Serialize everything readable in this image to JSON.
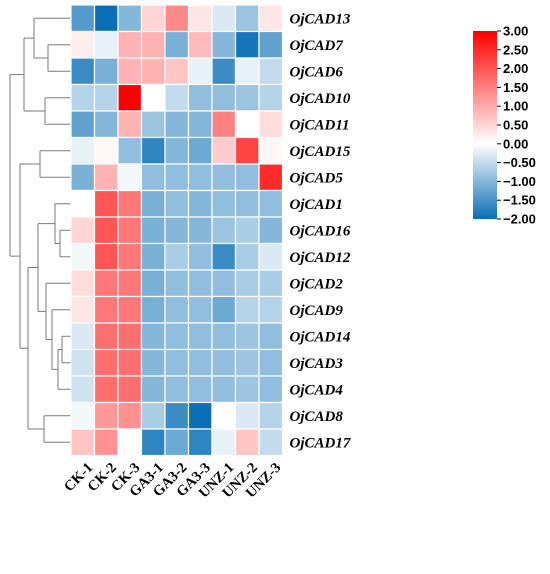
{
  "chart_data": {
    "type": "heatmap",
    "title": "",
    "xlabel": "",
    "ylabel": "",
    "columns": [
      "CK-1",
      "CK-2",
      "CK-3",
      "GA3-1",
      "GA3-2",
      "GA3-3",
      "UNZ-1",
      "UNZ-2",
      "UNZ-3"
    ],
    "rows": [
      "OjCAD13",
      "OjCAD7",
      "OjCAD6",
      "OjCAD10",
      "OjCAD11",
      "OjCAD15",
      "OjCAD5",
      "OjCAD1",
      "OjCAD16",
      "OjCAD12",
      "OjCAD2",
      "OjCAD9",
      "OjCAD14",
      "OjCAD3",
      "OjCAD4",
      "OjCAD8",
      "OjCAD17"
    ],
    "values": [
      [
        -1.4,
        -2.0,
        -1.0,
        0.5,
        1.4,
        0.3,
        -0.3,
        -0.8,
        0.3
      ],
      [
        0.2,
        -0.2,
        0.9,
        0.9,
        -1.1,
        0.8,
        -1.0,
        -1.9,
        -1.3
      ],
      [
        -1.6,
        -1.1,
        0.9,
        0.9,
        0.7,
        -0.2,
        -1.6,
        -0.2,
        -0.5
      ],
      [
        -0.6,
        -0.6,
        3.0,
        0.0,
        -0.5,
        -0.9,
        -0.9,
        -0.8,
        -0.6
      ],
      [
        -1.3,
        -1.0,
        0.9,
        -0.8,
        -1.0,
        -1.0,
        1.5,
        0.0,
        0.4
      ],
      [
        -0.2,
        0.1,
        -0.9,
        -1.7,
        -1.0,
        -1.2,
        0.6,
        2.2,
        0.1
      ],
      [
        -1.1,
        0.9,
        -0.1,
        -0.9,
        -0.9,
        -0.9,
        -0.9,
        -0.9,
        2.5
      ],
      [
        0.0,
        2.0,
        1.6,
        -1.1,
        -0.9,
        -1.0,
        -0.9,
        -0.9,
        -0.9
      ],
      [
        0.5,
        2.0,
        1.6,
        -1.1,
        -1.0,
        -1.0,
        -0.8,
        -0.7,
        -1.0
      ],
      [
        -0.1,
        2.0,
        1.6,
        -1.1,
        -0.7,
        -0.9,
        -1.6,
        -0.7,
        -0.3
      ],
      [
        0.4,
        1.6,
        1.6,
        -1.1,
        -0.9,
        -0.9,
        -0.9,
        -0.7,
        -0.7
      ],
      [
        0.3,
        1.6,
        1.6,
        -1.1,
        -0.9,
        -0.9,
        -1.2,
        -0.6,
        -0.6
      ],
      [
        -0.3,
        1.7,
        1.7,
        -1.0,
        -0.9,
        -0.9,
        -0.9,
        -0.8,
        -0.9
      ],
      [
        -0.4,
        1.7,
        1.7,
        -1.0,
        -0.9,
        -0.9,
        -0.9,
        -0.8,
        -0.9
      ],
      [
        -0.4,
        1.7,
        1.7,
        -1.0,
        -0.9,
        -0.9,
        -0.9,
        -0.8,
        -0.9
      ],
      [
        -0.1,
        1.2,
        1.3,
        -0.7,
        -1.6,
        -2.0,
        0.0,
        -0.3,
        -0.6
      ],
      [
        0.7,
        1.3,
        0.0,
        -1.7,
        -1.2,
        -1.7,
        -0.2,
        0.7,
        -0.5
      ]
    ],
    "colorbar": {
      "min": -2.0,
      "max": 3.0,
      "mid": 0.0,
      "colors": {
        "low": "#0a6fb5",
        "mid": "#ffffff",
        "high": "#ff0000"
      },
      "ticks": [
        "3.00",
        "2.50",
        "2.00",
        "1.50",
        "1.00",
        "0.50",
        "0.00",
        "−0.50",
        "−1.00",
        "−1.50",
        "−2.00"
      ]
    },
    "dendrogram": "row clustering tree on left side",
    "grid": true
  }
}
